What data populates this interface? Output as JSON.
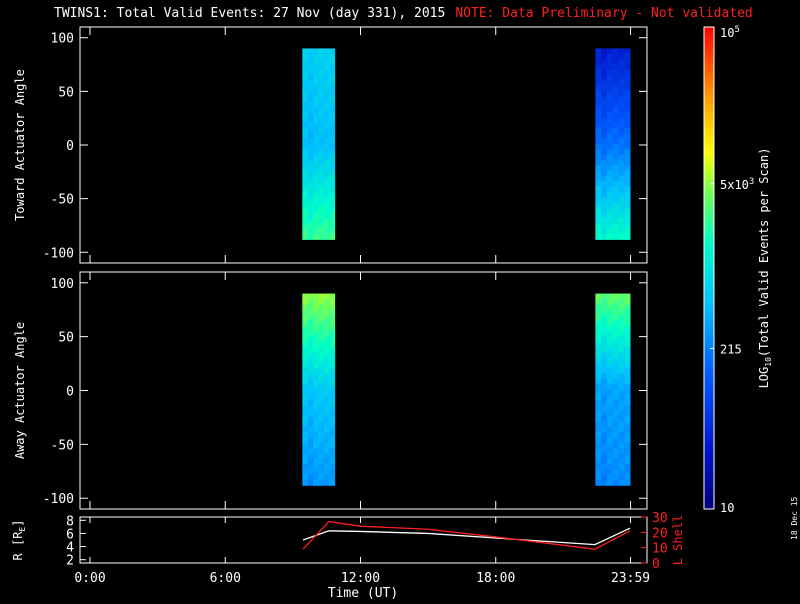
{
  "header": {
    "title": "TWINS1: Total Valid Events: 27 Nov (day 331), 2015",
    "note": "NOTE: Data Preliminary - Not validated"
  },
  "stamp": "18 Dec 15",
  "colors": {
    "background": "#000000",
    "axes": "#ffffff",
    "note": "#ff2020",
    "r_line": "#ffffff",
    "lshell_line": "#ff2020"
  },
  "chart_data": [
    {
      "type": "heatmap",
      "name": "toward",
      "ylabel": "Toward Actuator Angle",
      "ylim": [
        -110,
        110
      ],
      "yticks": [
        100,
        50,
        0,
        -50,
        -100
      ],
      "xlim": [
        0,
        24
      ],
      "blocks": [
        {
          "x_start": 9.42,
          "x_end": 10.85,
          "y_start": -88,
          "y_end": 90,
          "value_top": 700,
          "value_bottom": 2500,
          "value_mid": 500
        },
        {
          "x_start": 22.42,
          "x_end": 24.15,
          "y_start": -88,
          "y_end": 90,
          "value_top": 40,
          "value_bottom": 1500,
          "value_mid": 180
        }
      ]
    },
    {
      "type": "heatmap",
      "name": "away",
      "ylabel": "Away Actuator Angle",
      "ylim": [
        -110,
        110
      ],
      "yticks": [
        100,
        50,
        0,
        -50,
        -100
      ],
      "xlim": [
        0,
        24
      ],
      "blocks": [
        {
          "x_start": 9.42,
          "x_end": 10.85,
          "y_start": -88,
          "y_end": 90,
          "value_top": 5000,
          "value_bottom": 300,
          "value_mid": 600
        },
        {
          "x_start": 22.42,
          "x_end": 24.15,
          "y_start": -88,
          "y_end": 90,
          "value_top": 3500,
          "value_bottom": 250,
          "value_mid": 350
        }
      ]
    },
    {
      "type": "line",
      "name": "orbit",
      "ylabel": "R [R",
      "ylabel_sub": "E",
      "ylabel_end": "]",
      "ylim": [
        1.5,
        8.5
      ],
      "yticks": [
        8,
        6,
        4,
        2
      ],
      "y2label": "L Shell",
      "y2lim": [
        0,
        30
      ],
      "y2ticks": [
        30,
        20,
        10,
        0
      ],
      "xlabel": "Time (UT)",
      "xlim": [
        0,
        24
      ],
      "xtick_values": [
        0,
        6,
        12,
        18,
        23.98
      ],
      "xtick_labels": [
        "0:00",
        "6:00",
        "12:00",
        "18:00",
        "23:59"
      ],
      "series": [
        {
          "axis": "left",
          "x": [
            9.45,
            10.6,
            12.0,
            15.0,
            18.0,
            22.4,
            24.0
          ],
          "y": [
            5.0,
            6.4,
            6.3,
            6.0,
            5.3,
            4.3,
            6.8
          ]
        },
        {
          "axis": "right",
          "x": [
            9.45,
            10.6,
            12.0,
            15.0,
            18.0,
            22.4,
            24.0
          ],
          "y": [
            9,
            27,
            24,
            22,
            17,
            9,
            21
          ]
        }
      ]
    }
  ],
  "colorbar": {
    "label": "LOG",
    "label_sub": "10",
    "label_end": "(Total Valid Events per Scan)",
    "min": 10,
    "max": 100000,
    "ticks": [
      {
        "value": 100000,
        "base": "10",
        "exp": "5"
      },
      {
        "value": 5000,
        "base": "5x10",
        "exp": "3"
      },
      {
        "value": 215,
        "base": "215",
        "exp": ""
      },
      {
        "value": 10,
        "base": "10",
        "exp": ""
      }
    ]
  }
}
